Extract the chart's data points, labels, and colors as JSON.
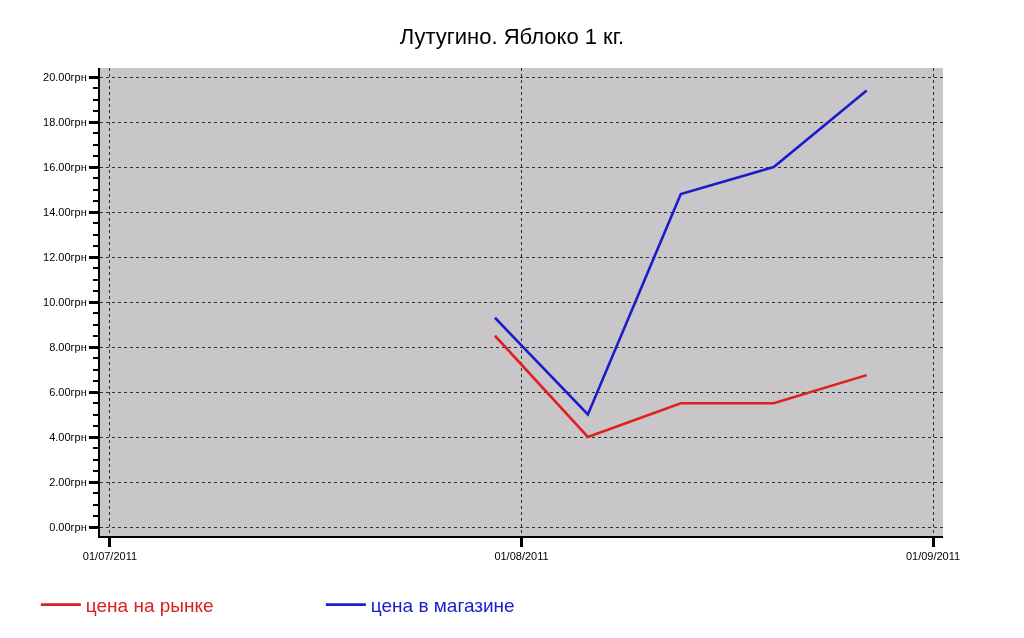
{
  "chart_data": {
    "type": "line",
    "title": "Лутугино. Яблоко 1 кг.",
    "x": [
      "2011-07-30",
      "2011-08-06",
      "2011-08-13",
      "2011-08-20",
      "2011-08-27"
    ],
    "series": [
      {
        "name": "цена на рынке",
        "color": "#dd2020",
        "values": [
          8.5,
          4,
          5.5,
          5.5,
          6.75
        ]
      },
      {
        "name": "цена в магазине",
        "color": "#1c1ccc",
        "values": [
          9.3,
          5,
          14.8,
          16,
          19.4
        ]
      }
    ],
    "xlim": [
      "2011-06-30T06:00",
      "2011-09-01T18:00"
    ],
    "xticks": [
      {
        "value": "2011-07-01",
        "label": "01/07/2011"
      },
      {
        "value": "2011-08-01",
        "label": "01/08/2011"
      },
      {
        "value": "2011-09-01",
        "label": "01/09/2011"
      }
    ],
    "ylim": [
      -0.4,
      20.4
    ],
    "yticks": [
      {
        "value": 0,
        "label": "0.00грн"
      },
      {
        "value": 2,
        "label": "2.00грн"
      },
      {
        "value": 4,
        "label": "4.00грн"
      },
      {
        "value": 6,
        "label": "6.00грн"
      },
      {
        "value": 8,
        "label": "8.00грн"
      },
      {
        "value": 10,
        "label": "10.00грн"
      },
      {
        "value": 12,
        "label": "12.00грн"
      },
      {
        "value": 14,
        "label": "14.00грн"
      },
      {
        "value": 16,
        "label": "16.00грн"
      },
      {
        "value": 18,
        "label": "18.00грн"
      },
      {
        "value": 20,
        "label": "20.00грн"
      },
      {
        "value": 0.5,
        "label": null
      },
      {
        "value": 1,
        "label": null
      },
      {
        "value": 1.5,
        "label": null
      },
      {
        "value": 2.5,
        "label": null
      },
      {
        "value": 3,
        "label": null
      },
      {
        "value": 3.5,
        "label": null
      },
      {
        "value": 4.5,
        "label": null
      },
      {
        "value": 5,
        "label": null
      },
      {
        "value": 5.5,
        "label": null
      },
      {
        "value": 6.5,
        "label": null
      },
      {
        "value": 7,
        "label": null
      },
      {
        "value": 7.5,
        "label": null
      },
      {
        "value": 8.5,
        "label": null
      },
      {
        "value": 9,
        "label": null
      },
      {
        "value": 9.5,
        "label": null
      },
      {
        "value": 10.5,
        "label": null
      },
      {
        "value": 11,
        "label": null
      },
      {
        "value": 11.5,
        "label": null
      },
      {
        "value": 12.5,
        "label": null
      },
      {
        "value": 13,
        "label": null
      },
      {
        "value": 13.5,
        "label": null
      },
      {
        "value": 14.5,
        "label": null
      },
      {
        "value": 15,
        "label": null
      },
      {
        "value": 15.5,
        "label": null
      },
      {
        "value": 16.5,
        "label": null
      },
      {
        "value": 17,
        "label": null
      },
      {
        "value": 17.5,
        "label": null
      },
      {
        "value": 18.5,
        "label": null
      },
      {
        "value": 19,
        "label": null
      },
      {
        "value": 19.5,
        "label": null
      }
    ],
    "grid": true,
    "legend": "bottom",
    "marker": "none",
    "line_style": "solid"
  }
}
